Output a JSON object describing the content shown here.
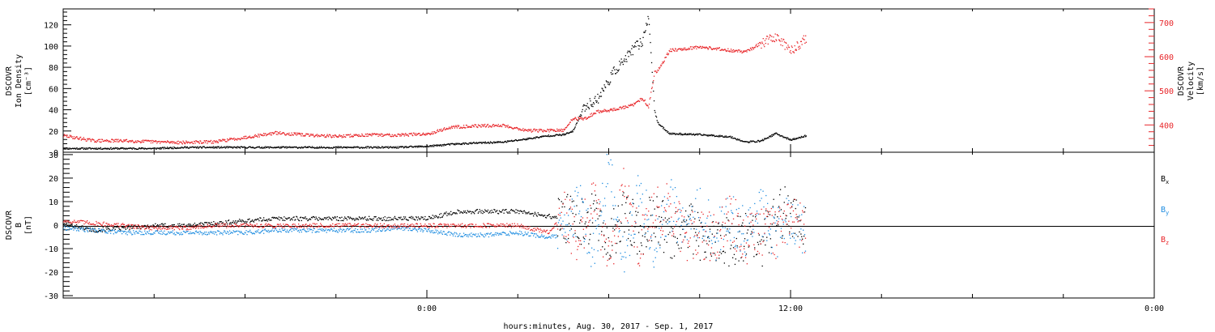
{
  "chart_data": [
    {
      "type": "scatter",
      "panel": "top",
      "x_axis": {
        "tick_labels": [
          "0:00",
          "12:00",
          "0:00"
        ],
        "title": "hours:minutes, Aug. 30, 2017 - Sep.  1, 2017",
        "xlim_hours": [
          -12,
          24
        ]
      },
      "left_axis": {
        "label_lines": [
          "DSCOVR",
          "Ion Density",
          "[cm⁻³]"
        ],
        "ylim": [
          0,
          135
        ],
        "ticks": [
          0,
          20,
          40,
          60,
          80,
          100,
          120
        ],
        "color": "#000000"
      },
      "right_axis": {
        "label_lines": [
          "DSCOVR",
          "Velocity",
          "[km/s]"
        ],
        "ylim": [
          320,
          740
        ],
        "ticks": [
          400,
          500,
          600,
          700
        ],
        "color": "#e8262a"
      },
      "series": [
        {
          "color": "#000000",
          "axis": "left",
          "x": [
            -12,
            -11,
            -10,
            -9,
            -8,
            -7,
            -6,
            -5,
            -4,
            -3,
            -2,
            -1,
            0,
            0.8,
            1.5,
            2.5,
            3.3,
            4,
            4.5,
            4.8,
            5.2,
            5.6,
            6.2,
            6.6,
            6.8,
            7.1,
            7.3,
            7.5,
            7.6,
            8,
            9,
            10,
            10.5,
            11,
            11.5,
            12,
            12.5
          ],
          "y": [
            4,
            4,
            4,
            4,
            5,
            5,
            5,
            5,
            5,
            5,
            5,
            5,
            6,
            8,
            9,
            10,
            13,
            16,
            17,
            20,
            44,
            50,
            78,
            90,
            98,
            105,
            130,
            40,
            28,
            18,
            17,
            15,
            10,
            11,
            18,
            12,
            16
          ]
        },
        {
          "color": "#e8262a",
          "axis": "right",
          "x": [
            -12,
            -11,
            -10,
            -9,
            -8,
            -7,
            -6,
            -5,
            -4,
            -3,
            -2,
            -1,
            0,
            0.8,
            1.5,
            2.5,
            3.3,
            4,
            4.5,
            4.8,
            5.2,
            5.6,
            6.2,
            6.6,
            6.8,
            7.1,
            7.3,
            7.5,
            7.6,
            8,
            9,
            10,
            10.5,
            11,
            11.5,
            12,
            12.5
          ],
          "y": [
            370,
            355,
            355,
            352,
            350,
            352,
            365,
            378,
            372,
            368,
            372,
            372,
            375,
            395,
            398,
            400,
            385,
            385,
            385,
            420,
            420,
            440,
            447,
            455,
            460,
            480,
            455,
            555,
            560,
            620,
            630,
            620,
            615,
            640,
            660,
            620,
            655
          ]
        }
      ]
    },
    {
      "type": "scatter",
      "panel": "bottom",
      "x_axis": {
        "tick_labels": [
          "0:00",
          "12:00",
          "0:00"
        ],
        "xlim_hours": [
          -12,
          24
        ]
      },
      "left_axis": {
        "label_lines": [
          "DSCOVR",
          "B",
          "[nT]"
        ],
        "ylim": [
          -31,
          31
        ],
        "ticks": [
          -30,
          -20,
          -10,
          0,
          10,
          20,
          30
        ]
      },
      "legend": [
        "Bx",
        "By",
        "Bz"
      ],
      "series": [
        {
          "name": "Bx",
          "color": "#000000",
          "x": [
            -12,
            -11,
            -10,
            -9,
            -8,
            -7,
            -6,
            -5,
            -4,
            -3,
            -2,
            -1,
            0,
            1,
            2,
            3,
            4,
            4.5,
            5,
            5.5,
            6,
            6.5,
            7,
            7.5,
            8,
            8.5,
            9,
            9.5,
            10,
            10.5,
            11,
            11.5,
            12,
            12.5
          ],
          "y": [
            1,
            -2,
            -1,
            0,
            0,
            1,
            2,
            3,
            3,
            3,
            3,
            3,
            3,
            6,
            6,
            6,
            4,
            3,
            0,
            5,
            -8,
            6,
            -4,
            5,
            -4,
            2,
            -6,
            -8,
            -6,
            -5,
            -8,
            5,
            6,
            -3
          ]
        },
        {
          "name": "By",
          "color": "#1f8de0",
          "x": [
            -12,
            -11,
            -10,
            -9,
            -8,
            -7,
            -6,
            -5,
            -4,
            -3,
            -2,
            -1,
            0,
            1,
            2,
            3,
            4,
            4.5,
            5,
            5.5,
            6,
            6.5,
            7,
            7.5,
            8,
            8.5,
            9,
            9.5,
            10,
            10.5,
            11,
            11.5,
            12,
            12.5
          ],
          "y": [
            -1,
            -2,
            -3,
            -3,
            -3,
            -3,
            -3,
            -2,
            -2,
            -2,
            -2,
            -1,
            -2,
            -4,
            -4,
            -3,
            -5,
            -4,
            8,
            -10,
            25,
            -14,
            14,
            -8,
            10,
            -2,
            6,
            -4,
            4,
            -3,
            6,
            -4,
            5,
            -4
          ]
        },
        {
          "name": "Bz",
          "color": "#e8262a",
          "x": [
            -12,
            -11,
            -10,
            -9,
            -8,
            -7,
            -6,
            -5,
            -4,
            -3,
            -2,
            -1,
            0,
            1,
            2,
            3,
            4,
            4.5,
            5,
            5.5,
            6,
            6.5,
            7,
            7.5,
            8,
            8.5,
            9,
            9.5,
            10,
            10.5,
            11,
            11.5,
            12,
            12.5
          ],
          "y": [
            2,
            1,
            0,
            -1,
            -1,
            0,
            0,
            0,
            0,
            0,
            0,
            0,
            0,
            0,
            0,
            0,
            -3,
            4,
            -6,
            12,
            -15,
            15,
            -8,
            6,
            8,
            -5,
            -3,
            -6,
            4,
            -6,
            -4,
            -3,
            5,
            -3
          ]
        }
      ]
    }
  ]
}
